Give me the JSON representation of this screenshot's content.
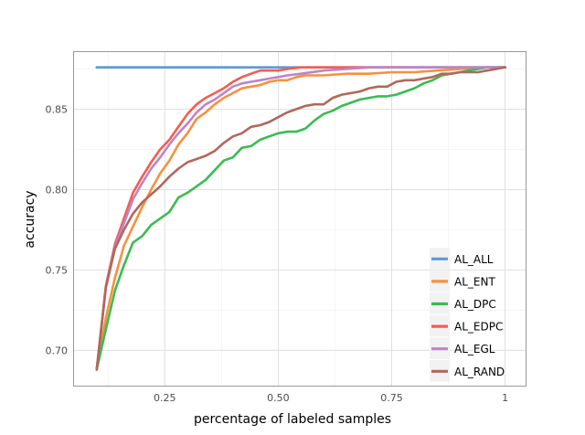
{
  "chart_data": {
    "type": "line",
    "title": "",
    "xlabel": "percentage of labeled samples",
    "ylabel": "accuracy",
    "xlim": [
      0.05,
      1.045
    ],
    "ylim": [
      0.678,
      0.8855
    ],
    "x_ticks": [
      0.25,
      0.5,
      0.75,
      1.0
    ],
    "x_tick_labels": [
      "0.25",
      "0.50",
      "0.75",
      "1"
    ],
    "y_ticks": [
      0.7,
      0.75,
      0.8,
      0.85
    ],
    "y_tick_labels": [
      "0.70",
      "0.75",
      "0.80",
      "0.85"
    ],
    "grid": true,
    "legend_position": "bottom-right",
    "series": [
      {
        "name": "AL_ALL",
        "color": "#5b9bd5",
        "x": [
          0.1,
          1.0
        ],
        "y": [
          0.876,
          0.876
        ]
      },
      {
        "name": "AL_ENT",
        "color": "#f7913d",
        "x": [
          0.1,
          0.12,
          0.14,
          0.16,
          0.18,
          0.2,
          0.22,
          0.24,
          0.26,
          0.28,
          0.3,
          0.32,
          0.34,
          0.36,
          0.38,
          0.4,
          0.42,
          0.44,
          0.46,
          0.48,
          0.5,
          0.52,
          0.54,
          0.56,
          0.6,
          0.65,
          0.7,
          0.75,
          0.8,
          0.85,
          0.9,
          0.95,
          1.0
        ],
        "y": [
          0.688,
          0.72,
          0.745,
          0.765,
          0.777,
          0.789,
          0.8,
          0.81,
          0.818,
          0.828,
          0.835,
          0.844,
          0.848,
          0.853,
          0.857,
          0.86,
          0.863,
          0.864,
          0.865,
          0.867,
          0.868,
          0.868,
          0.87,
          0.871,
          0.871,
          0.872,
          0.872,
          0.873,
          0.873,
          0.874,
          0.875,
          0.876,
          0.876
        ]
      },
      {
        "name": "AL_DPC",
        "color": "#3cba54",
        "x": [
          0.1,
          0.12,
          0.14,
          0.16,
          0.18,
          0.2,
          0.22,
          0.24,
          0.26,
          0.28,
          0.3,
          0.32,
          0.34,
          0.36,
          0.38,
          0.4,
          0.42,
          0.44,
          0.46,
          0.48,
          0.5,
          0.52,
          0.54,
          0.56,
          0.58,
          0.6,
          0.62,
          0.64,
          0.66,
          0.68,
          0.7,
          0.72,
          0.74,
          0.76,
          0.78,
          0.8,
          0.82,
          0.84,
          0.86,
          0.88,
          0.9,
          0.92,
          0.94,
          0.96,
          0.98,
          1.0
        ],
        "y": [
          0.688,
          0.713,
          0.737,
          0.753,
          0.767,
          0.771,
          0.778,
          0.782,
          0.786,
          0.795,
          0.798,
          0.802,
          0.806,
          0.812,
          0.818,
          0.82,
          0.826,
          0.827,
          0.831,
          0.833,
          0.835,
          0.836,
          0.836,
          0.838,
          0.843,
          0.847,
          0.849,
          0.852,
          0.854,
          0.856,
          0.857,
          0.858,
          0.858,
          0.859,
          0.861,
          0.863,
          0.866,
          0.868,
          0.871,
          0.872,
          0.873,
          0.874,
          0.875,
          0.876,
          0.876,
          0.876
        ]
      },
      {
        "name": "AL_EDPC",
        "color": "#f65c51",
        "x": [
          0.1,
          0.12,
          0.14,
          0.16,
          0.18,
          0.2,
          0.22,
          0.24,
          0.26,
          0.28,
          0.3,
          0.32,
          0.34,
          0.36,
          0.38,
          0.4,
          0.42,
          0.44,
          0.46,
          0.48,
          0.5,
          0.52,
          0.55,
          0.6,
          0.7,
          0.8,
          1.0
        ],
        "y": [
          0.688,
          0.74,
          0.766,
          0.782,
          0.798,
          0.808,
          0.817,
          0.825,
          0.831,
          0.839,
          0.847,
          0.853,
          0.857,
          0.86,
          0.863,
          0.867,
          0.87,
          0.872,
          0.874,
          0.874,
          0.874,
          0.875,
          0.876,
          0.876,
          0.876,
          0.876,
          0.876
        ]
      },
      {
        "name": "AL_EGL",
        "color": "#bb85c9",
        "x": [
          0.1,
          0.12,
          0.14,
          0.16,
          0.18,
          0.2,
          0.22,
          0.24,
          0.26,
          0.28,
          0.3,
          0.32,
          0.34,
          0.36,
          0.38,
          0.4,
          0.42,
          0.44,
          0.46,
          0.48,
          0.5,
          0.52,
          0.55,
          0.6,
          0.65,
          0.7,
          0.8,
          1.0
        ],
        "y": [
          0.688,
          0.739,
          0.764,
          0.779,
          0.794,
          0.804,
          0.813,
          0.82,
          0.828,
          0.835,
          0.841,
          0.848,
          0.853,
          0.856,
          0.86,
          0.864,
          0.866,
          0.867,
          0.868,
          0.869,
          0.87,
          0.871,
          0.872,
          0.874,
          0.875,
          0.876,
          0.876,
          0.876
        ]
      },
      {
        "name": "AL_RAND",
        "color": "#b0685c",
        "x": [
          0.1,
          0.12,
          0.14,
          0.16,
          0.18,
          0.2,
          0.22,
          0.24,
          0.26,
          0.28,
          0.3,
          0.32,
          0.34,
          0.36,
          0.38,
          0.4,
          0.42,
          0.44,
          0.46,
          0.48,
          0.5,
          0.52,
          0.54,
          0.56,
          0.58,
          0.6,
          0.62,
          0.64,
          0.66,
          0.68,
          0.7,
          0.72,
          0.74,
          0.76,
          0.78,
          0.8,
          0.82,
          0.84,
          0.86,
          0.88,
          0.9,
          0.92,
          0.94,
          0.96,
          0.98,
          1.0
        ],
        "y": [
          0.688,
          0.739,
          0.763,
          0.775,
          0.785,
          0.792,
          0.797,
          0.802,
          0.808,
          0.813,
          0.817,
          0.819,
          0.821,
          0.824,
          0.829,
          0.833,
          0.835,
          0.839,
          0.84,
          0.842,
          0.845,
          0.848,
          0.85,
          0.852,
          0.853,
          0.853,
          0.857,
          0.859,
          0.86,
          0.861,
          0.863,
          0.864,
          0.864,
          0.867,
          0.868,
          0.868,
          0.869,
          0.87,
          0.872,
          0.872,
          0.873,
          0.873,
          0.873,
          0.874,
          0.875,
          0.876
        ]
      }
    ]
  }
}
